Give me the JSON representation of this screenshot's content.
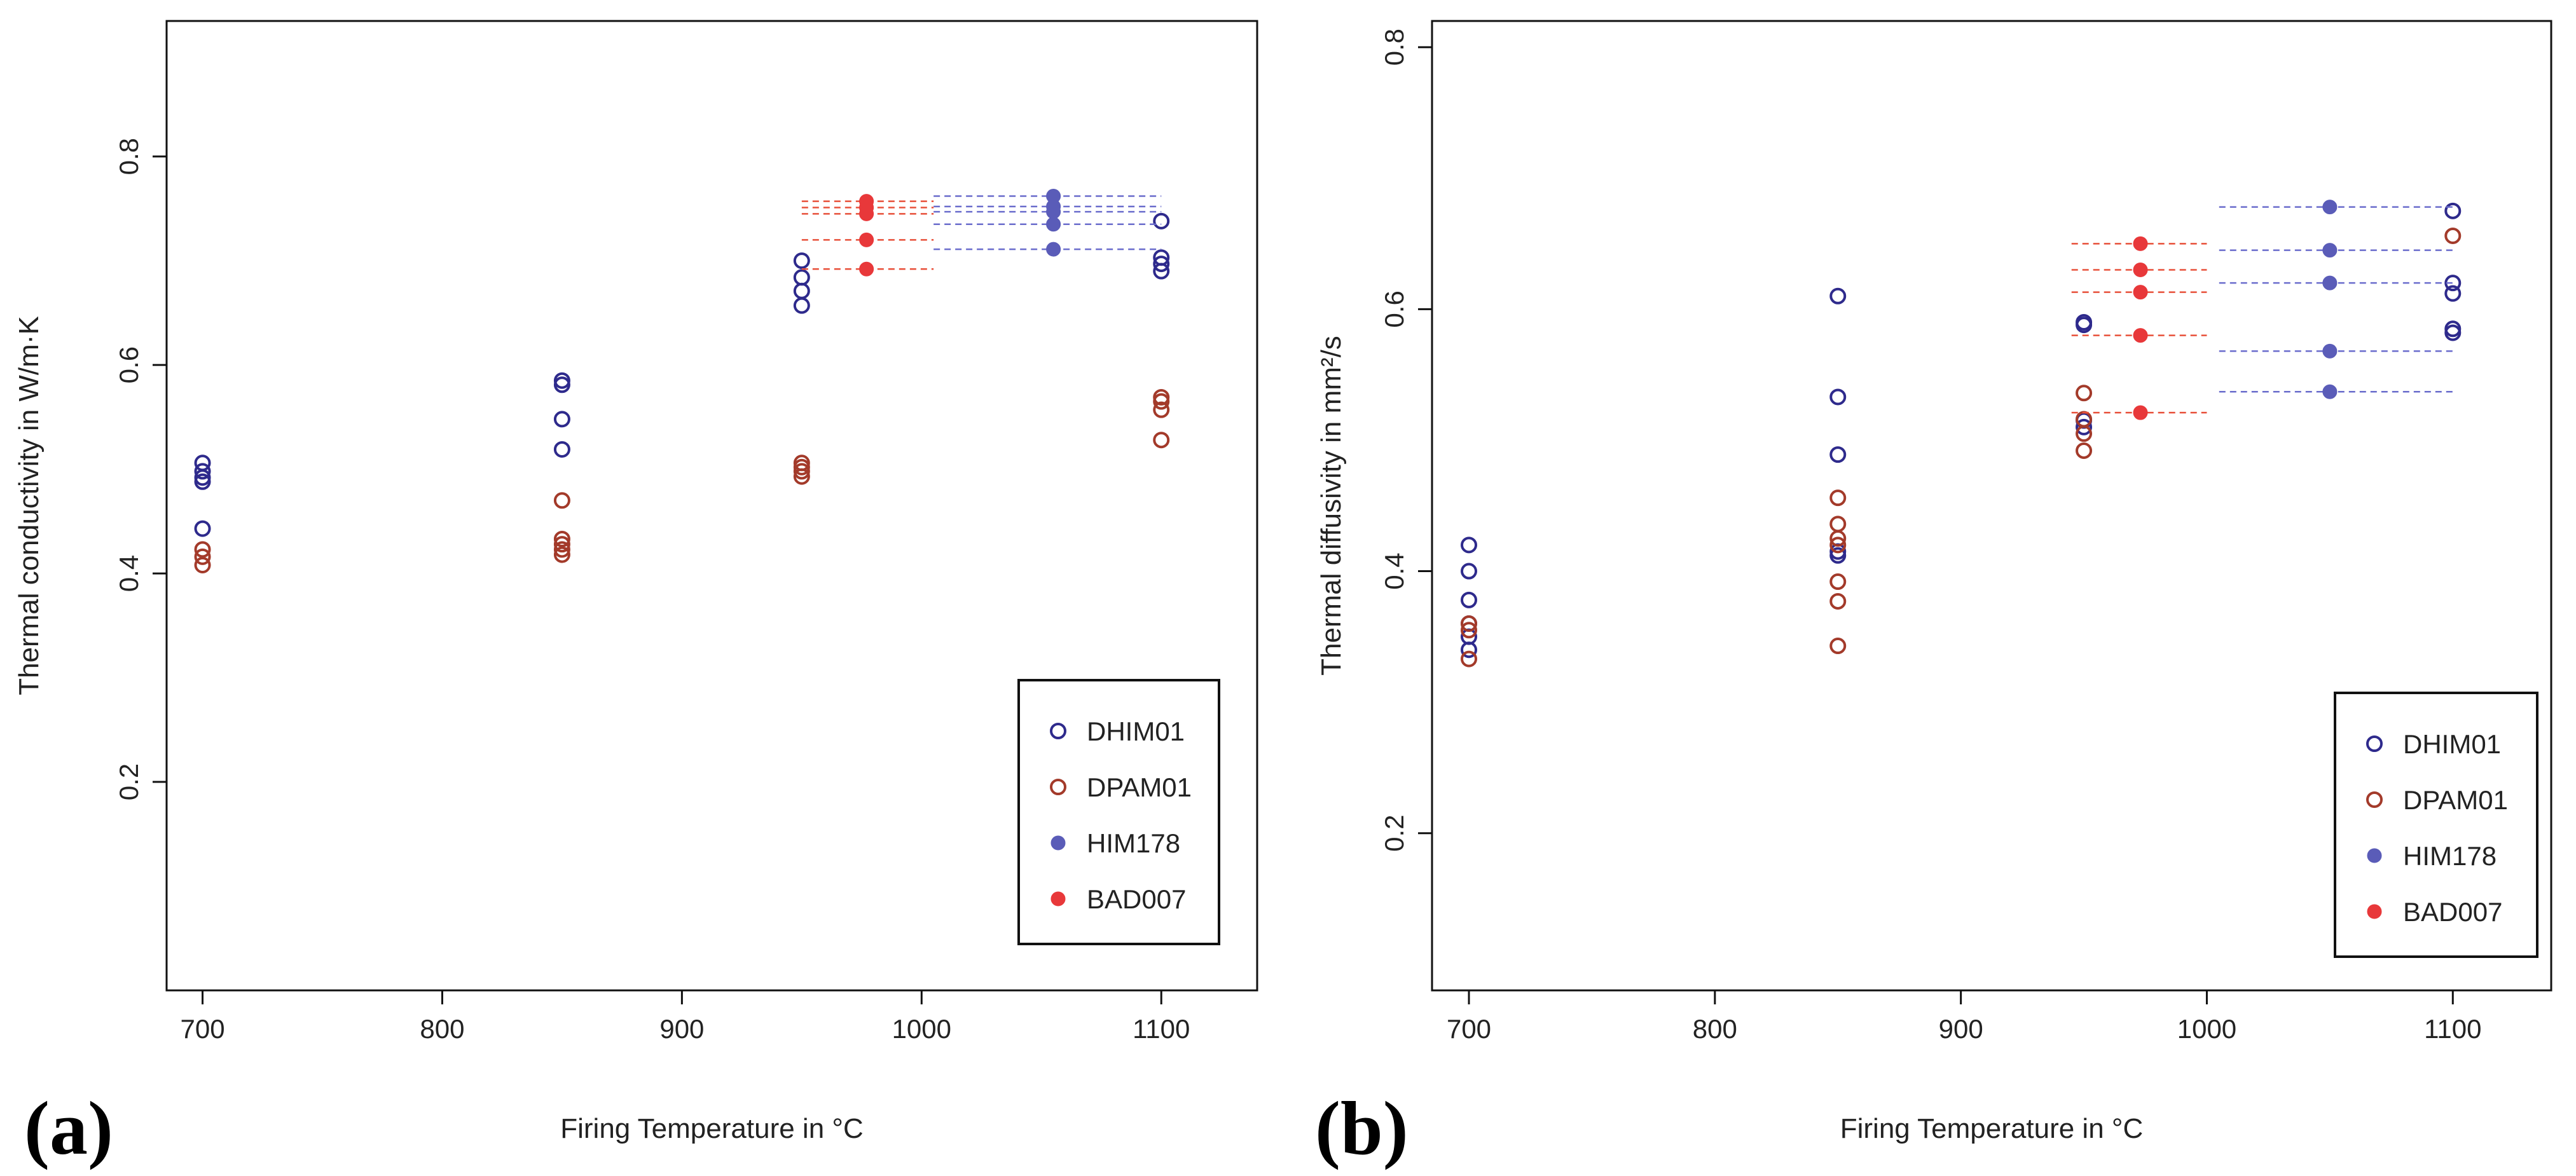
{
  "colors": {
    "dhim": "#2e2a8c",
    "dpam": "#a33a2a",
    "him": "#5a5cb8",
    "bad": "#e8383a",
    "him_line": "#6a6ccc",
    "bad_line": "#e8503a"
  },
  "chart_data": [
    {
      "type": "scatter",
      "panel_label": "(a)",
      "xlabel": "Firing Temperature in °C",
      "ylabel": "Thermal conductivity in W/m·K",
      "xlim": [
        685,
        1140
      ],
      "ylim": [
        0.0,
        0.93
      ],
      "xticks": [
        700,
        800,
        900,
        1000,
        1100
      ],
      "xtick_labels": [
        "700",
        "800",
        "900",
        "1000",
        "1100"
      ],
      "yticks": [
        0.2,
        0.4,
        0.6,
        0.8
      ],
      "ytick_labels": [
        "0.2",
        "0.4",
        "0.6",
        "0.8"
      ],
      "legend_position": "bottom-right",
      "series": [
        {
          "name": "DHIM01",
          "marker": "open",
          "color": "dhim",
          "points": [
            [
              700,
              0.506
            ],
            [
              700,
              0.498
            ],
            [
              700,
              0.492
            ],
            [
              700,
              0.488
            ],
            [
              700,
              0.443
            ],
            [
              850,
              0.585
            ],
            [
              850,
              0.581
            ],
            [
              850,
              0.548
            ],
            [
              850,
              0.519
            ],
            [
              950,
              0.7
            ],
            [
              950,
              0.684
            ],
            [
              950,
              0.671
            ],
            [
              950,
              0.657
            ],
            [
              1100,
              0.738
            ],
            [
              1100,
              0.703
            ],
            [
              1100,
              0.697
            ],
            [
              1100,
              0.69
            ]
          ]
        },
        {
          "name": "DPAM01",
          "marker": "open",
          "color": "dpam",
          "points": [
            [
              700,
              0.423
            ],
            [
              700,
              0.416
            ],
            [
              700,
              0.408
            ],
            [
              850,
              0.47
            ],
            [
              850,
              0.433
            ],
            [
              850,
              0.428
            ],
            [
              850,
              0.423
            ],
            [
              850,
              0.418
            ],
            [
              950,
              0.506
            ],
            [
              950,
              0.502
            ],
            [
              950,
              0.498
            ],
            [
              950,
              0.493
            ],
            [
              1100,
              0.569
            ],
            [
              1100,
              0.565
            ],
            [
              1100,
              0.557
            ],
            [
              1100,
              0.528
            ]
          ]
        },
        {
          "name": "HIM178",
          "marker": "filled",
          "color": "him",
          "points": [
            [
              1055,
              0.762
            ],
            [
              1055,
              0.752
            ],
            [
              1055,
              0.747
            ],
            [
              1055,
              0.735
            ],
            [
              1055,
              0.711
            ]
          ],
          "ranges": [
            [
              1005,
              1100
            ],
            [
              1005,
              1100
            ],
            [
              1005,
              1100
            ],
            [
              1005,
              1100
            ],
            [
              1005,
              1100
            ]
          ]
        },
        {
          "name": "BAD007",
          "marker": "filled",
          "color": "bad",
          "points": [
            [
              977,
              0.757
            ],
            [
              977,
              0.751
            ],
            [
              977,
              0.745
            ],
            [
              977,
              0.72
            ],
            [
              977,
              0.692
            ]
          ],
          "ranges": [
            [
              950,
              1005
            ],
            [
              950,
              1005
            ],
            [
              950,
              1005
            ],
            [
              950,
              1005
            ],
            [
              950,
              1005
            ]
          ]
        }
      ]
    },
    {
      "type": "scatter",
      "panel_label": "(b)",
      "xlabel": "Firing Temperature in °C",
      "ylabel": "Thermal diffusivity in mm²/s",
      "xlim": [
        685,
        1140
      ],
      "ylim": [
        0.08,
        0.82
      ],
      "xticks": [
        700,
        800,
        900,
        1000,
        1100
      ],
      "xtick_labels": [
        "700",
        "800",
        "900",
        "1000",
        "1100"
      ],
      "yticks": [
        0.2,
        0.4,
        0.6,
        0.8
      ],
      "ytick_labels": [
        "0.2",
        "0.4",
        "0.6",
        "0.8"
      ],
      "legend_position": "bottom-right",
      "series": [
        {
          "name": "DHIM01",
          "marker": "open",
          "color": "dhim",
          "points": [
            [
              700,
              0.42
            ],
            [
              700,
              0.4
            ],
            [
              700,
              0.378
            ],
            [
              700,
              0.36
            ],
            [
              700,
              0.35
            ],
            [
              700,
              0.34
            ],
            [
              850,
              0.61
            ],
            [
              850,
              0.533
            ],
            [
              850,
              0.489
            ],
            [
              850,
              0.415
            ],
            [
              850,
              0.412
            ],
            [
              950,
              0.59
            ],
            [
              950,
              0.588
            ],
            [
              950,
              0.515
            ],
            [
              950,
              0.51
            ],
            [
              1100,
              0.675
            ],
            [
              1100,
              0.62
            ],
            [
              1100,
              0.612
            ],
            [
              1100,
              0.585
            ],
            [
              1100,
              0.582
            ]
          ]
        },
        {
          "name": "DPAM01",
          "marker": "open",
          "color": "dpam",
          "points": [
            [
              700,
              0.36
            ],
            [
              700,
              0.355
            ],
            [
              700,
              0.333
            ],
            [
              850,
              0.456
            ],
            [
              850,
              0.436
            ],
            [
              850,
              0.425
            ],
            [
              850,
              0.42
            ],
            [
              850,
              0.392
            ],
            [
              850,
              0.377
            ],
            [
              850,
              0.343
            ],
            [
              950,
              0.536
            ],
            [
              950,
              0.516
            ],
            [
              950,
              0.505
            ],
            [
              950,
              0.492
            ],
            [
              1100,
              0.656
            ]
          ]
        },
        {
          "name": "HIM178",
          "marker": "filled",
          "color": "him",
          "points": [
            [
              1050,
              0.678
            ],
            [
              1050,
              0.645
            ],
            [
              1050,
              0.62
            ],
            [
              1050,
              0.568
            ],
            [
              1050,
              0.537
            ]
          ],
          "ranges": [
            [
              1005,
              1100
            ],
            [
              1005,
              1100
            ],
            [
              1005,
              1100
            ],
            [
              1005,
              1100
            ],
            [
              1005,
              1100
            ]
          ]
        },
        {
          "name": "BAD007",
          "marker": "filled",
          "color": "bad",
          "points": [
            [
              973,
              0.65
            ],
            [
              973,
              0.63
            ],
            [
              973,
              0.613
            ],
            [
              973,
              0.58
            ],
            [
              973,
              0.521
            ]
          ],
          "ranges": [
            [
              945,
              1000
            ],
            [
              945,
              1000
            ],
            [
              945,
              1000
            ],
            [
              945,
              1000
            ],
            [
              945,
              1000
            ]
          ]
        }
      ]
    }
  ]
}
